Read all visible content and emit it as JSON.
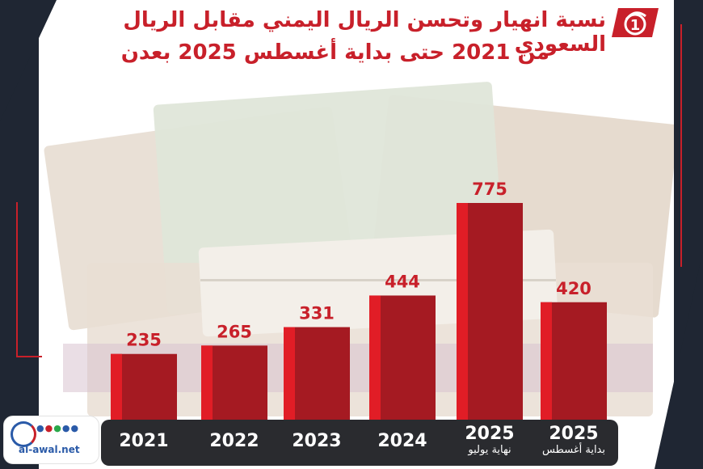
{
  "title": {
    "line1": "نسبة انهيار وتحسن الريال اليمني مقابل الريال السعودي",
    "line2": "من 2021  حتى بداية أغسطس 2025 بعدن"
  },
  "logo": {
    "text": "1",
    "icon": "al-awal-logo"
  },
  "site": {
    "url": "al-awal.net",
    "icons": [
      "social-icons"
    ]
  },
  "colors": {
    "bar": "#c8202a",
    "bar_dark": "#a51a22",
    "accent": "#c8202a",
    "panel": "#1f2633"
  },
  "chart_data": {
    "type": "bar",
    "categories": [
      "2021",
      "2022",
      "2023",
      "2024",
      "2025",
      "2025"
    ],
    "category_sublabels": [
      "",
      "",
      "",
      "",
      "نهاية يوليو",
      "بداية أغسطس"
    ],
    "values": [
      235,
      265,
      331,
      444,
      775,
      420
    ],
    "title": "نسبة انهيار وتحسن الريال اليمني مقابل الريال السعودي من 2021  حتى بداية أغسطس 2025 بعدن",
    "xlabel": "",
    "ylabel": "",
    "ylim": [
      0,
      775
    ],
    "grid": false,
    "legend": "none"
  }
}
